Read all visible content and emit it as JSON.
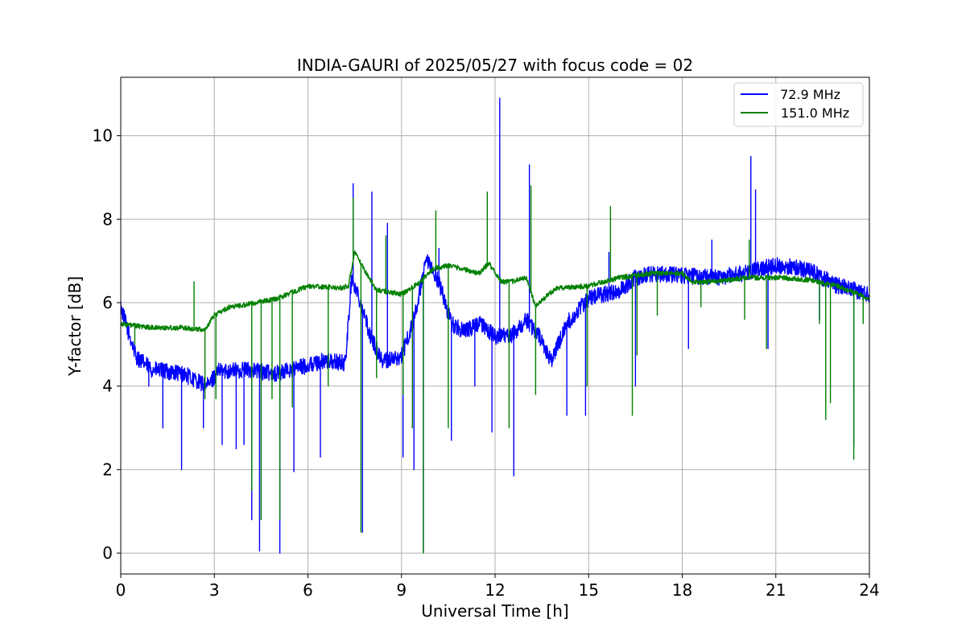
{
  "chart_data": {
    "type": "line",
    "title": "INDIA-GAURI of 2025/05/27 with focus code = 02",
    "xlabel": "Universal Time [h]",
    "ylabel": "Y-factor [dB]",
    "xlim": [
      0,
      24
    ],
    "ylim": [
      -0.5,
      11.4
    ],
    "xticks": [
      0,
      3,
      6,
      9,
      12,
      15,
      18,
      21,
      24
    ],
    "xtick_labels": [
      "0",
      "3",
      "6",
      "9",
      "12",
      "15",
      "18",
      "21",
      "24"
    ],
    "yticks": [
      0,
      2,
      4,
      6,
      8,
      10
    ],
    "ytick_labels": [
      "0",
      "2",
      "4",
      "6",
      "8",
      "10"
    ],
    "grid": true,
    "legend_position": "top-right",
    "series": [
      {
        "name": " 72.9 MHz",
        "color": "#0000ff",
        "noise": 0.2,
        "baseline": [
          [
            0,
            5.9
          ],
          [
            0.2,
            5.4
          ],
          [
            0.5,
            4.7
          ],
          [
            1,
            4.4
          ],
          [
            1.5,
            4.35
          ],
          [
            2,
            4.3
          ],
          [
            2.5,
            4.1
          ],
          [
            2.8,
            4.0
          ],
          [
            3.1,
            4.35
          ],
          [
            4,
            4.4
          ],
          [
            5,
            4.3
          ],
          [
            5.5,
            4.4
          ],
          [
            6,
            4.5
          ],
          [
            6.5,
            4.6
          ],
          [
            7.2,
            4.55
          ],
          [
            7.4,
            6.6
          ],
          [
            7.7,
            6.0
          ],
          [
            8.0,
            5.2
          ],
          [
            8.4,
            4.6
          ],
          [
            9,
            4.7
          ],
          [
            9.4,
            5.6
          ],
          [
            9.8,
            7.0
          ],
          [
            10.2,
            6.5
          ],
          [
            10.6,
            5.5
          ],
          [
            11,
            5.3
          ],
          [
            11.5,
            5.5
          ],
          [
            12,
            5.2
          ],
          [
            12.5,
            5.2
          ],
          [
            13,
            5.6
          ],
          [
            13.4,
            5.2
          ],
          [
            13.8,
            4.6
          ],
          [
            14.3,
            5.5
          ],
          [
            15,
            6.1
          ],
          [
            15.5,
            6.2
          ],
          [
            16,
            6.3
          ],
          [
            16.5,
            6.6
          ],
          [
            17,
            6.7
          ],
          [
            18,
            6.65
          ],
          [
            19,
            6.6
          ],
          [
            20,
            6.7
          ],
          [
            21,
            6.9
          ],
          [
            22,
            6.8
          ],
          [
            23,
            6.4
          ],
          [
            24,
            6.2
          ]
        ],
        "spikes": [
          [
            0.9,
            4.0
          ],
          [
            1.35,
            3.0
          ],
          [
            1.95,
            2.0
          ],
          [
            2.65,
            3.0
          ],
          [
            3.25,
            2.6
          ],
          [
            3.7,
            2.5
          ],
          [
            3.95,
            2.6
          ],
          [
            4.2,
            0.8
          ],
          [
            4.45,
            0.05
          ],
          [
            5.1,
            0.0
          ],
          [
            5.55,
            1.95
          ],
          [
            6.4,
            2.3
          ],
          [
            7.45,
            8.85
          ],
          [
            7.75,
            0.5
          ],
          [
            8.05,
            8.65
          ],
          [
            8.55,
            7.9
          ],
          [
            9.05,
            2.3
          ],
          [
            9.4,
            2.0
          ],
          [
            9.7,
            0.05
          ],
          [
            10.2,
            7.3
          ],
          [
            10.6,
            2.7
          ],
          [
            11.35,
            4.0
          ],
          [
            11.9,
            2.9
          ],
          [
            12.15,
            10.9
          ],
          [
            12.6,
            1.85
          ],
          [
            13.1,
            9.3
          ],
          [
            14.3,
            3.3
          ],
          [
            14.9,
            3.3
          ],
          [
            15.65,
            7.2
          ],
          [
            16.5,
            4.0
          ],
          [
            18.2,
            4.9
          ],
          [
            18.95,
            7.5
          ],
          [
            20.2,
            9.5
          ],
          [
            20.35,
            8.7
          ],
          [
            20.75,
            4.9
          ],
          [
            22.4,
            5.6
          ],
          [
            23.5,
            2.6
          ]
        ]
      },
      {
        "name": "151.0 MHz",
        "color": "#008000",
        "noise": 0.06,
        "baseline": [
          [
            0,
            5.5
          ],
          [
            0.4,
            5.45
          ],
          [
            1,
            5.4
          ],
          [
            2,
            5.4
          ],
          [
            2.7,
            5.35
          ],
          [
            3.0,
            5.7
          ],
          [
            3.5,
            5.9
          ],
          [
            4,
            5.95
          ],
          [
            5,
            6.1
          ],
          [
            6,
            6.4
          ],
          [
            7,
            6.35
          ],
          [
            7.3,
            6.4
          ],
          [
            7.5,
            7.2
          ],
          [
            7.8,
            6.8
          ],
          [
            8.2,
            6.3
          ],
          [
            9,
            6.2
          ],
          [
            9.6,
            6.5
          ],
          [
            10,
            6.8
          ],
          [
            10.5,
            6.9
          ],
          [
            11,
            6.8
          ],
          [
            11.5,
            6.7
          ],
          [
            11.8,
            6.95
          ],
          [
            12.2,
            6.5
          ],
          [
            12.5,
            6.5
          ],
          [
            13,
            6.6
          ],
          [
            13.3,
            5.9
          ],
          [
            13.7,
            6.2
          ],
          [
            14,
            6.35
          ],
          [
            15,
            6.4
          ],
          [
            16,
            6.6
          ],
          [
            17,
            6.7
          ],
          [
            18,
            6.7
          ],
          [
            18.3,
            6.5
          ],
          [
            19,
            6.5
          ],
          [
            20,
            6.6
          ],
          [
            21,
            6.6
          ],
          [
            22,
            6.55
          ],
          [
            23,
            6.4
          ],
          [
            24,
            6.1
          ]
        ],
        "spikes": [
          [
            0.45,
            5.0
          ],
          [
            2.35,
            6.5
          ],
          [
            2.7,
            3.7
          ],
          [
            3.05,
            3.7
          ],
          [
            4.2,
            1.5
          ],
          [
            4.5,
            0.8
          ],
          [
            4.85,
            3.7
          ],
          [
            5.1,
            0.8
          ],
          [
            5.5,
            3.5
          ],
          [
            6.65,
            4.0
          ],
          [
            7.45,
            8.5
          ],
          [
            7.7,
            0.5
          ],
          [
            8.2,
            4.2
          ],
          [
            8.5,
            7.6
          ],
          [
            9.05,
            3.8
          ],
          [
            9.35,
            3.0
          ],
          [
            9.7,
            0.0
          ],
          [
            10.1,
            8.2
          ],
          [
            10.5,
            3.0
          ],
          [
            11.75,
            8.65
          ],
          [
            12.45,
            3.0
          ],
          [
            13.15,
            8.8
          ],
          [
            13.3,
            3.8
          ],
          [
            14.95,
            4.0
          ],
          [
            15.7,
            8.3
          ],
          [
            16.4,
            3.3
          ],
          [
            16.55,
            4.75
          ],
          [
            17.2,
            5.7
          ],
          [
            18.6,
            5.9
          ],
          [
            20.0,
            5.6
          ],
          [
            20.15,
            7.5
          ],
          [
            20.7,
            4.9
          ],
          [
            22.4,
            5.5
          ],
          [
            22.6,
            3.2
          ],
          [
            22.75,
            3.6
          ],
          [
            23.5,
            2.25
          ],
          [
            23.8,
            5.5
          ]
        ]
      }
    ]
  }
}
